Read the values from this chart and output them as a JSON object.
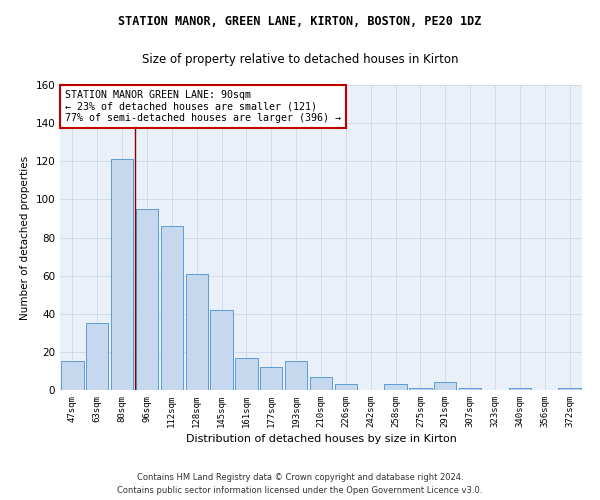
{
  "title": "STATION MANOR, GREEN LANE, KIRTON, BOSTON, PE20 1DZ",
  "subtitle": "Size of property relative to detached houses in Kirton",
  "xlabel": "Distribution of detached houses by size in Kirton",
  "ylabel": "Number of detached properties",
  "categories": [
    "47sqm",
    "63sqm",
    "80sqm",
    "96sqm",
    "112sqm",
    "128sqm",
    "145sqm",
    "161sqm",
    "177sqm",
    "193sqm",
    "210sqm",
    "226sqm",
    "242sqm",
    "258sqm",
    "275sqm",
    "291sqm",
    "307sqm",
    "323sqm",
    "340sqm",
    "356sqm",
    "372sqm"
  ],
  "values": [
    15,
    35,
    121,
    95,
    86,
    61,
    42,
    17,
    12,
    15,
    7,
    3,
    0,
    3,
    1,
    4,
    1,
    0,
    1,
    0,
    1
  ],
  "bar_color": "#c5d8ed",
  "bar_edge_color": "#5b9bd5",
  "vline_x_index": 2,
  "vline_color": "#8b0000",
  "annotation_text": "STATION MANOR GREEN LANE: 90sqm\n← 23% of detached houses are smaller (121)\n77% of semi-detached houses are larger (396) →",
  "annotation_box_color": "white",
  "annotation_box_edge_color": "#c00000",
  "ylim": [
    0,
    160
  ],
  "yticks": [
    0,
    20,
    40,
    60,
    80,
    100,
    120,
    140,
    160
  ],
  "grid_color": "#d0dce8",
  "background_color": "#eaf0f8",
  "footer_line1": "Contains HM Land Registry data © Crown copyright and database right 2024.",
  "footer_line2": "Contains public sector information licensed under the Open Government Licence v3.0."
}
